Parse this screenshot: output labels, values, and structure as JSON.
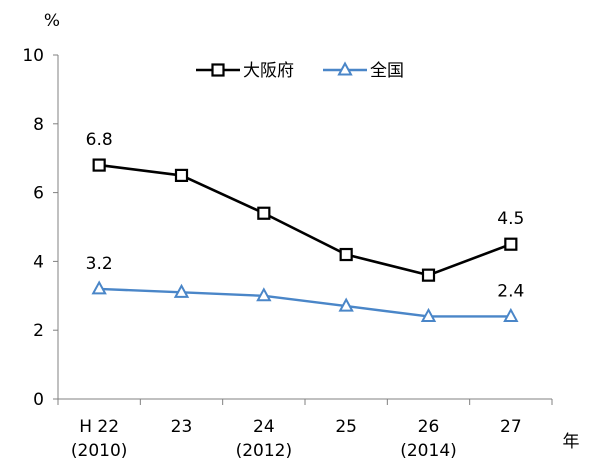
{
  "chart_data": {
    "type": "line",
    "ylabel": "%",
    "xlabel": "年",
    "ylim": [
      0,
      10
    ],
    "y_ticks": [
      0,
      2,
      4,
      6,
      8,
      10
    ],
    "categories": [
      {
        "line1": "H 22",
        "line2": "(2010)"
      },
      {
        "line1": "23",
        "line2": ""
      },
      {
        "line1": "24",
        "line2": "(2012)"
      },
      {
        "line1": "25",
        "line2": ""
      },
      {
        "line1": "26",
        "line2": "(2014)"
      },
      {
        "line1": "27",
        "line2": ""
      }
    ],
    "series": [
      {
        "name": "大阪府",
        "color": "#000000",
        "marker": "square",
        "values": [
          6.8,
          6.5,
          5.4,
          4.2,
          3.6,
          4.5
        ],
        "labels": [
          "6.8",
          "",
          "",
          "",
          "",
          "4.5"
        ]
      },
      {
        "name": "全国",
        "color": "#4a86c8",
        "marker": "triangle",
        "values": [
          3.2,
          3.1,
          3.0,
          2.7,
          2.4,
          2.4
        ],
        "labels": [
          "3.2",
          "",
          "",
          "",
          "",
          "2.4"
        ]
      }
    ],
    "grid": false,
    "legend_position": "top-center"
  }
}
